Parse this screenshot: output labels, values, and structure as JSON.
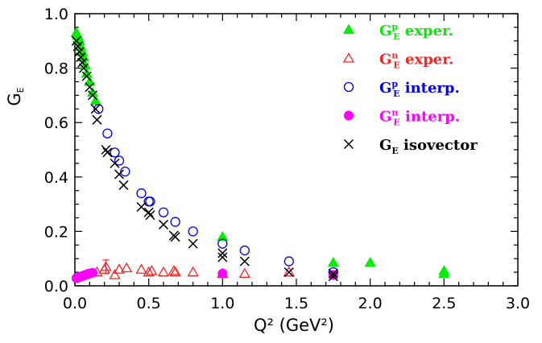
{
  "chart_data": {
    "type": "scatter",
    "xlabel": "Q² (GeV²)",
    "ylabel": "G",
    "ylabel_sub": "E",
    "xlim": [
      0,
      3.0
    ],
    "ylim": [
      0,
      1.0
    ],
    "xticks": [
      0.0,
      0.5,
      1.0,
      1.5,
      2.0,
      2.5,
      3.0
    ],
    "xtick_labels": [
      "0.0",
      "0.5",
      "1.0",
      "1.5",
      "2.0",
      "2.5",
      "3.0"
    ],
    "yticks": [
      0.0,
      0.2,
      0.4,
      0.6,
      0.8,
      1.0
    ],
    "ytick_labels": [
      "0.0",
      "0.2",
      "0.4",
      "0.6",
      "0.8",
      "1.0"
    ],
    "grid": false,
    "legend_position": "top-right",
    "series": [
      {
        "id": "gpe_exp",
        "label_main": "G",
        "label_sup": "p",
        "label_sub": "E",
        "label_rest": " exper.",
        "color": "#00ee00",
        "marker": "triangle-filled",
        "points": [
          [
            0.01,
            0.93
          ],
          [
            0.02,
            0.92
          ],
          [
            0.025,
            0.91
          ],
          [
            0.03,
            0.9
          ],
          [
            0.04,
            0.88
          ],
          [
            0.05,
            0.86
          ],
          [
            0.06,
            0.84
          ],
          [
            0.07,
            0.81
          ],
          [
            0.08,
            0.78
          ],
          [
            0.1,
            0.75
          ],
          [
            0.12,
            0.71
          ],
          [
            0.14,
            0.68
          ],
          [
            1.0,
            0.18
          ],
          [
            1.75,
            0.085
          ],
          [
            2.0,
            0.085
          ],
          [
            2.5,
            0.055
          ],
          [
            2.5,
            0.045
          ]
        ]
      },
      {
        "id": "gne_exp",
        "label_main": "G",
        "label_sup": "n",
        "label_sub": "E",
        "label_rest": " exper.",
        "color": "#ff2020",
        "marker": "triangle-open",
        "points": [
          [
            0.15,
            0.05
          ],
          [
            0.2,
            0.06
          ],
          [
            0.21,
            0.07
          ],
          [
            0.27,
            0.04
          ],
          [
            0.3,
            0.06
          ],
          [
            0.35,
            0.065
          ],
          [
            0.45,
            0.06
          ],
          [
            0.5,
            0.05
          ],
          [
            0.52,
            0.055
          ],
          [
            0.6,
            0.05
          ],
          [
            0.67,
            0.055
          ],
          [
            0.68,
            0.05
          ],
          [
            0.8,
            0.05
          ],
          [
            1.0,
            0.045
          ],
          [
            1.15,
            0.045
          ],
          [
            1.45,
            0.05
          ]
        ],
        "error_bars": [
          [
            0.21,
            0.07,
            0.025
          ]
        ]
      },
      {
        "id": "gpe_int",
        "label_main": "G",
        "label_sup": "p",
        "label_sub": "E",
        "label_rest": " interp.",
        "color": "#0000ee",
        "marker": "circle-open",
        "points": [
          [
            0.16,
            0.65
          ],
          [
            0.22,
            0.56
          ],
          [
            0.27,
            0.49
          ],
          [
            0.3,
            0.46
          ],
          [
            0.34,
            0.42
          ],
          [
            0.45,
            0.34
          ],
          [
            0.5,
            0.31
          ],
          [
            0.51,
            0.31
          ],
          [
            0.6,
            0.27
          ],
          [
            0.68,
            0.235
          ],
          [
            0.8,
            0.2
          ],
          [
            1.0,
            0.155
          ],
          [
            1.15,
            0.13
          ],
          [
            1.45,
            0.09
          ],
          [
            1.75,
            0.05
          ]
        ]
      },
      {
        "id": "gne_int",
        "label_main": "G",
        "label_sup": "n",
        "label_sub": "E",
        "label_rest": " interp.",
        "color": "#ff00ff",
        "marker": "circle-filled",
        "points": [
          [
            0.01,
            0.028
          ],
          [
            0.02,
            0.03
          ],
          [
            0.03,
            0.032
          ],
          [
            0.04,
            0.034
          ],
          [
            0.05,
            0.036
          ],
          [
            0.06,
            0.038
          ],
          [
            0.07,
            0.04
          ],
          [
            0.08,
            0.042
          ],
          [
            0.09,
            0.044
          ],
          [
            0.1,
            0.046
          ],
          [
            0.12,
            0.048
          ],
          [
            1.0,
            0.045
          ],
          [
            1.75,
            0.04
          ]
        ]
      },
      {
        "id": "ge_iso",
        "label_main": "G",
        "label_sup": "",
        "label_sub": "E",
        "label_rest": " isovector",
        "color": "#000000",
        "marker": "x",
        "points": [
          [
            0.01,
            0.9
          ],
          [
            0.02,
            0.88
          ],
          [
            0.03,
            0.86
          ],
          [
            0.04,
            0.84
          ],
          [
            0.05,
            0.82
          ],
          [
            0.06,
            0.8
          ],
          [
            0.08,
            0.77
          ],
          [
            0.1,
            0.73
          ],
          [
            0.12,
            0.7
          ],
          [
            0.14,
            0.65
          ],
          [
            0.15,
            0.61
          ],
          [
            0.21,
            0.5
          ],
          [
            0.22,
            0.49
          ],
          [
            0.27,
            0.45
          ],
          [
            0.3,
            0.41
          ],
          [
            0.33,
            0.37
          ],
          [
            0.45,
            0.29
          ],
          [
            0.5,
            0.27
          ],
          [
            0.51,
            0.26
          ],
          [
            0.6,
            0.225
          ],
          [
            0.67,
            0.185
          ],
          [
            0.68,
            0.18
          ],
          [
            0.8,
            0.155
          ],
          [
            1.0,
            0.12
          ],
          [
            1.0,
            0.105
          ],
          [
            1.15,
            0.09
          ],
          [
            1.45,
            0.05
          ],
          [
            1.75,
            0.045
          ],
          [
            1.75,
            0.035
          ]
        ]
      }
    ]
  }
}
